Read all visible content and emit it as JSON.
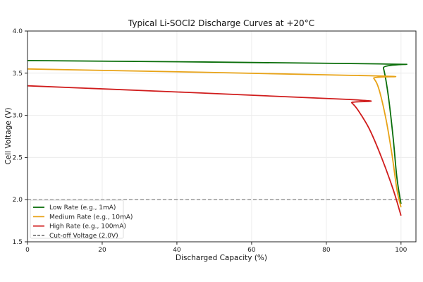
{
  "chart_data": {
    "type": "line",
    "title": "Typical Li-SOCl2 Discharge Curves at +20°C",
    "xlabel": "Discharged Capacity (%)",
    "ylabel": "Cell Voltage (V)",
    "xlim": [
      0,
      104
    ],
    "ylim": [
      1.5,
      4.0
    ],
    "xticks": [
      "0",
      "20",
      "40",
      "60",
      "80",
      "100"
    ],
    "yticks": [
      "1.5",
      "2.0",
      "2.5",
      "3.0",
      "3.5",
      "4.0"
    ],
    "grid": true,
    "legend_position": "bottom-left",
    "series": [
      {
        "name": "Low Rate (e.g., 1mA)",
        "color": "#0a6e0a",
        "x": [
          0,
          94.3,
          95.3,
          96.6,
          97.9,
          98.9,
          100
        ],
        "y": [
          3.65,
          3.61,
          3.56,
          3.23,
          2.73,
          2.26,
          1.95
        ]
      },
      {
        "name": "Medium Rate (e.g., 10mA)",
        "color": "#e8a317",
        "x": [
          0,
          91.5,
          92.7,
          94.1,
          96.0,
          97.6,
          98.9,
          100
        ],
        "y": [
          3.55,
          3.47,
          3.44,
          3.31,
          2.95,
          2.53,
          2.12,
          1.91
        ]
      },
      {
        "name": "High Rate (e.g., 100mA)",
        "color": "#d01c1c",
        "x": [
          0,
          85.3,
          86.8,
          88.5,
          91.5,
          94.7,
          97.9,
          100
        ],
        "y": [
          3.35,
          3.19,
          3.15,
          3.06,
          2.84,
          2.51,
          2.12,
          1.81
        ]
      }
    ],
    "reference_line": {
      "name": "Cut-off Voltage (2.0V)",
      "y": 2.0,
      "color": "#777777",
      "style": "dashed"
    }
  }
}
